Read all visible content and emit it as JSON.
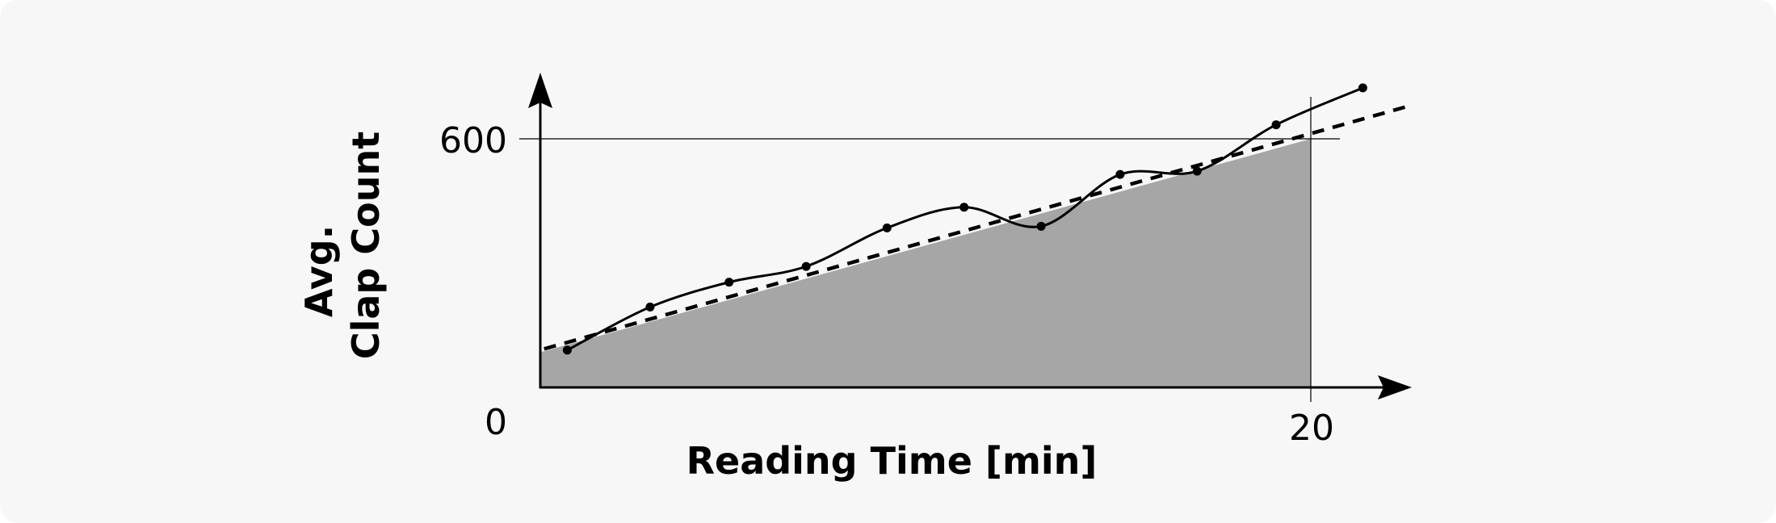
{
  "chart_data": {
    "type": "line",
    "title": "",
    "xlabel": "Reading Time [min]",
    "ylabel_lines": [
      "Avg.",
      "Clap Count"
    ],
    "x_ticks": [
      {
        "value": 0,
        "label": "0"
      },
      {
        "value": 20,
        "label": "20"
      }
    ],
    "y_ticks": [
      {
        "value": 600,
        "label": "600"
      }
    ],
    "xlim": [
      0,
      22.5
    ],
    "ylim": [
      0,
      760
    ],
    "grid": "reference lines at x=20 and y=600",
    "area": {
      "x": [
        0,
        20
      ],
      "y": [
        85,
        600
      ],
      "color": "#a6a6a6"
    },
    "trend_line": {
      "style": "dashed",
      "x": [
        0.1,
        22.5
      ],
      "y": [
        93,
        678
      ]
    },
    "series": [
      {
        "style": "smooth-solid",
        "color": "#000000",
        "points": [
          {
            "x": 0.7,
            "y": 90
          },
          {
            "x": 2.85,
            "y": 194
          },
          {
            "x": 4.9,
            "y": 254
          },
          {
            "x": 6.9,
            "y": 292
          },
          {
            "x": 9.0,
            "y": 385
          },
          {
            "x": 11.0,
            "y": 435
          },
          {
            "x": 13.0,
            "y": 389
          },
          {
            "x": 15.05,
            "y": 514
          },
          {
            "x": 17.05,
            "y": 522
          },
          {
            "x": 19.1,
            "y": 634
          },
          {
            "x": 21.35,
            "y": 723
          }
        ]
      }
    ]
  }
}
